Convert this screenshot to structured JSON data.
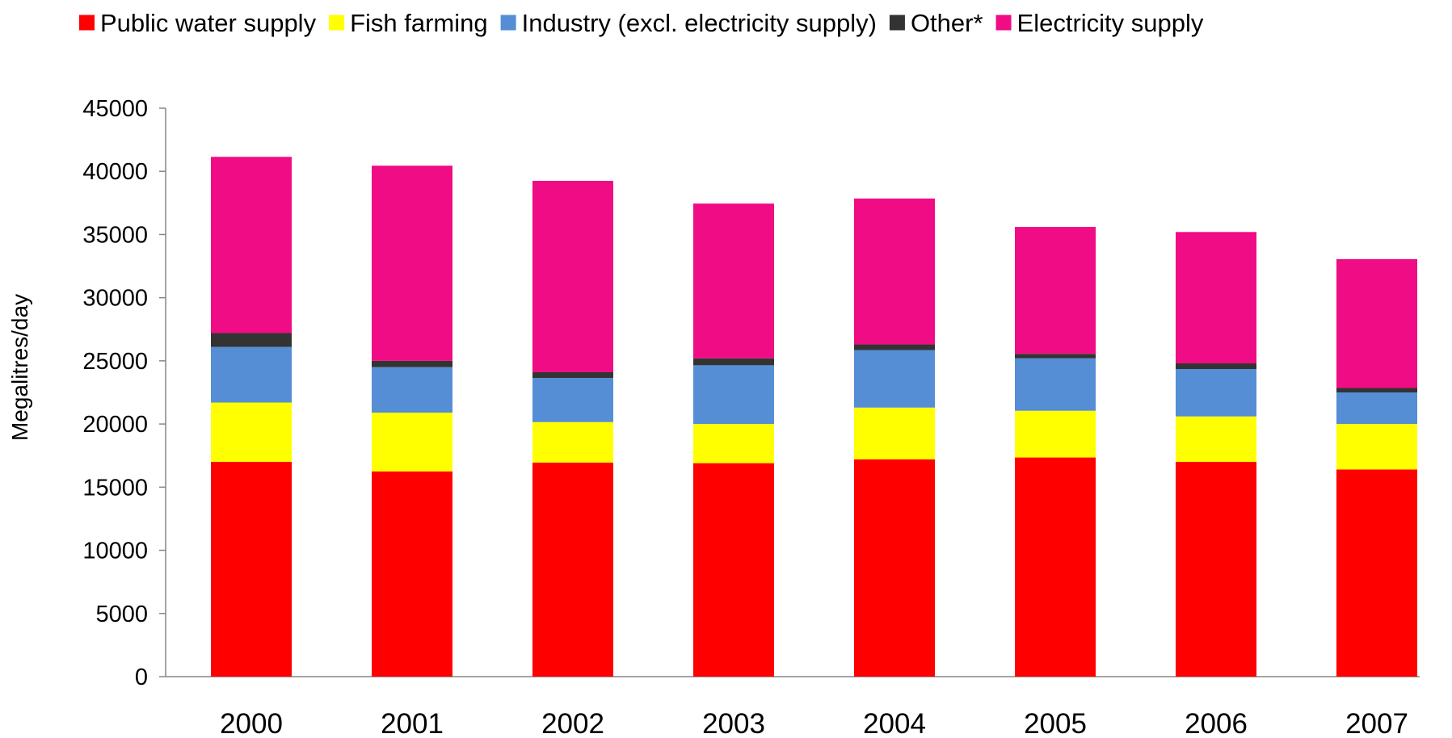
{
  "chart_data": {
    "type": "bar",
    "stacked": true,
    "categories": [
      "2000",
      "2001",
      "2002",
      "2003",
      "2004",
      "2005",
      "2006",
      "2007"
    ],
    "series": [
      {
        "name": "Public water supply",
        "color": "#FF0000",
        "values": [
          17000,
          16250,
          16950,
          16900,
          17200,
          17350,
          17000,
          16400
        ]
      },
      {
        "name": "Fish farming",
        "color": "#FFFF00",
        "values": [
          4700,
          4650,
          3200,
          3100,
          4100,
          3700,
          3600,
          3600
        ]
      },
      {
        "name": "Industry (excl. electricity supply)",
        "color": "#558ED5",
        "values": [
          4400,
          3600,
          3500,
          4650,
          4550,
          4150,
          3750,
          2500
        ]
      },
      {
        "name": "Other*",
        "color": "#333333",
        "values": [
          1100,
          500,
          450,
          550,
          450,
          350,
          450,
          350
        ]
      },
      {
        "name": "Electricity supply",
        "color": "#F00C84",
        "values": [
          13950,
          15450,
          15150,
          12250,
          11550,
          10050,
          10400,
          10200
        ]
      }
    ],
    "ylabel": "Megalitres/day",
    "ylim": [
      0,
      45000
    ],
    "yticks": [
      0,
      5000,
      10000,
      15000,
      20000,
      25000,
      30000,
      35000,
      40000,
      45000
    ],
    "grid": false,
    "legend_position": "top"
  }
}
